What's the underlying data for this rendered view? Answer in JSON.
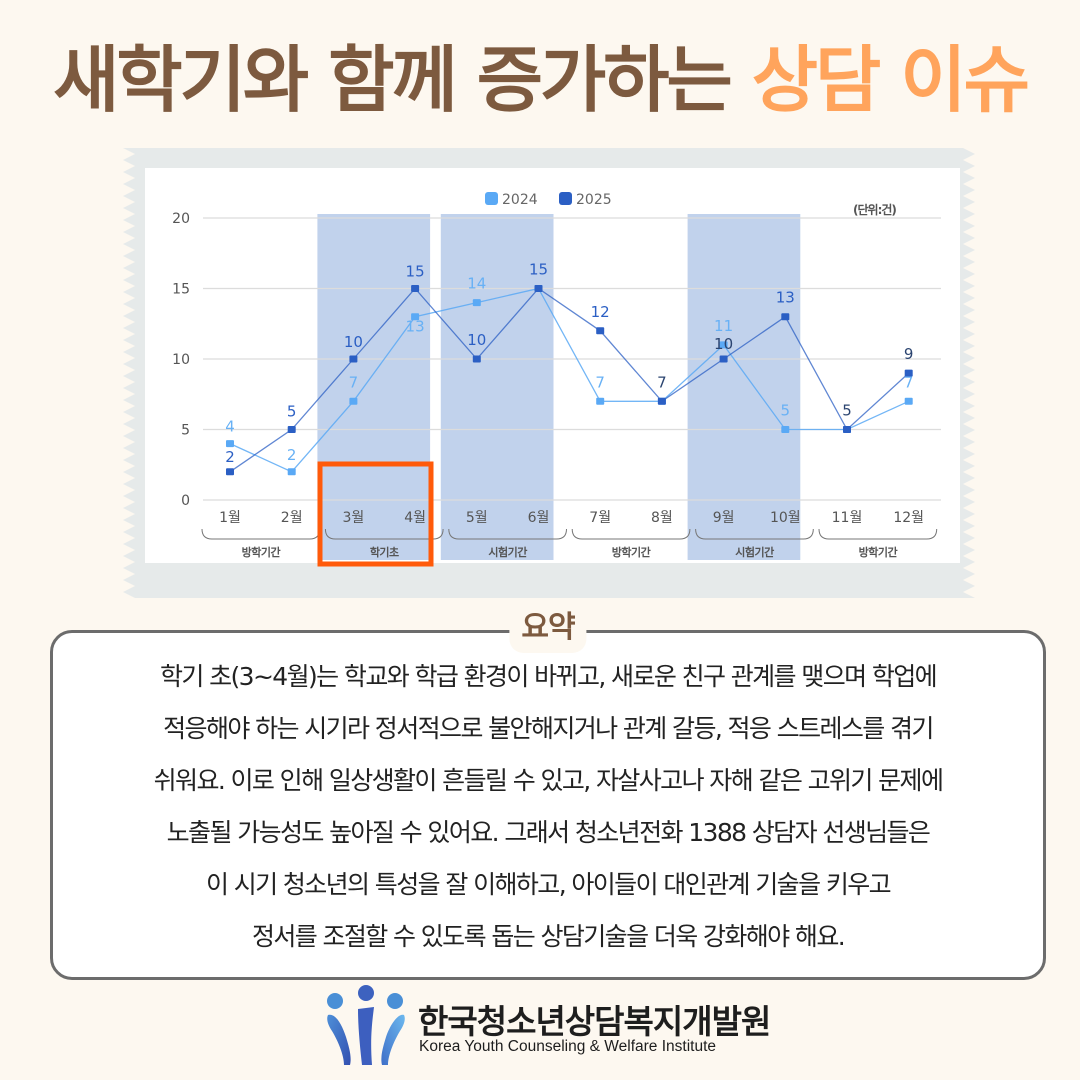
{
  "title": {
    "main": "새학기와 함께 증가하는 ",
    "accent": "상담 이슈",
    "main_color": "#7d5a3f",
    "accent_color": "#ffa45c"
  },
  "chart_data": {
    "type": "line",
    "title": "",
    "unit_label": "(단위:건)",
    "xlabel": "",
    "ylabel": "",
    "ylim": [
      0,
      20
    ],
    "yticks": [
      0,
      5,
      10,
      15,
      20
    ],
    "grid": true,
    "legend_position": "top",
    "categories": [
      "1월",
      "2월",
      "3월",
      "4월",
      "5월",
      "6월",
      "7월",
      "8월",
      "9월",
      "10월",
      "11월",
      "12월"
    ],
    "series": [
      {
        "name": "2024",
        "color": "#5aa9f5",
        "values": [
          4,
          2,
          7,
          13,
          14,
          15,
          7,
          7,
          11,
          5,
          5,
          7
        ]
      },
      {
        "name": "2025",
        "color": "#2b5fc4",
        "values": [
          2,
          5,
          10,
          15,
          10,
          15,
          12,
          7,
          10,
          13,
          5,
          9
        ]
      }
    ],
    "period_groups": [
      {
        "label": "방학기간",
        "months": [
          1,
          2
        ],
        "shaded": false
      },
      {
        "label": "학기초",
        "months": [
          3,
          4
        ],
        "shaded": true,
        "highlighted": true
      },
      {
        "label": "시험기간",
        "months": [
          5,
          6
        ],
        "shaded": true
      },
      {
        "label": "방학기간",
        "months": [
          7,
          8
        ],
        "shaded": false
      },
      {
        "label": "시험기간",
        "months": [
          9,
          10
        ],
        "shaded": true
      },
      {
        "label": "방학기간",
        "months": [
          11,
          12
        ],
        "shaded": false
      }
    ],
    "shade_color": "#c1d2ec",
    "highlight_color": "#ff5a0a"
  },
  "summary": {
    "heading": "요약",
    "lines": [
      "학기 초(3~4월)는 학교와 학급 환경이 바뀌고, 새로운 친구 관계를 맺으며 학업에",
      "적응해야 하는 시기라 정서적으로 불안해지거나 관계 갈등, 적응 스트레스를 겪기",
      "쉬워요. 이로 인해 일상생활이 흔들릴 수 있고, 자살사고나 자해 같은 고위기 문제에",
      "노출될 가능성도 높아질 수 있어요. 그래서 청소년전화 1388 상담자 선생님들은",
      "이 시기 청소년의 특성을 잘 이해하고, 아이들이 대인관계 기술을 키우고",
      "정서를 조절할 수 있도록 돕는 상담기술을 더욱 강화해야 해요."
    ]
  },
  "footer": {
    "org_name_ko": "한국청소년상담복지개발원",
    "org_name_en": "Korea Youth Counseling & Welfare Institute",
    "logo_icon": "people-logo-icon"
  }
}
